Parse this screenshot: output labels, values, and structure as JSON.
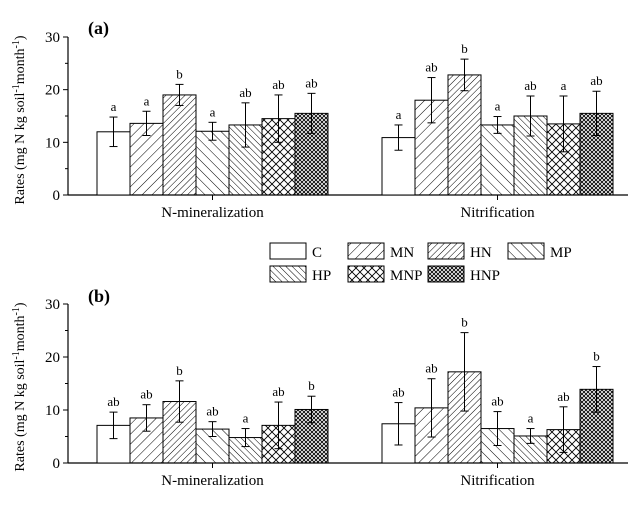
{
  "chart_data": [
    {
      "type": "bar",
      "panel_label": "(a)",
      "ylabel": "Rates (mg N kg soil",
      "ylabel_sup1": "-1",
      "ylabel_mid": "month",
      "ylabel_sup2": "-1",
      "ylabel_end": ")",
      "ylim": [
        0,
        30
      ],
      "yticks": [
        "0",
        "10",
        "20",
        "30"
      ],
      "categories": [
        "N-mineralization",
        "Nitrification"
      ],
      "series": [
        {
          "name": "C",
          "pattern": "none",
          "values": [
            12.0,
            10.9
          ],
          "errors": [
            2.8,
            2.4
          ],
          "letters": [
            "a",
            "a"
          ]
        },
        {
          "name": "MN",
          "pattern": "fwd",
          "values": [
            13.6,
            18.0
          ],
          "errors": [
            2.3,
            4.3
          ],
          "letters": [
            "a",
            "ab"
          ]
        },
        {
          "name": "HN",
          "pattern": "fwdDense",
          "values": [
            19.0,
            22.8
          ],
          "errors": [
            2.0,
            3.0
          ],
          "letters": [
            "b",
            "b"
          ]
        },
        {
          "name": "MP",
          "pattern": "back",
          "values": [
            12.1,
            13.3
          ],
          "errors": [
            1.7,
            1.6
          ],
          "letters": [
            "a",
            "a"
          ]
        },
        {
          "name": "HP",
          "pattern": "backDense",
          "values": [
            13.3,
            15.0
          ],
          "errors": [
            4.2,
            3.8
          ],
          "letters": [
            "ab",
            "ab"
          ]
        },
        {
          "name": "MNP",
          "pattern": "cross",
          "values": [
            14.5,
            13.5
          ],
          "errors": [
            4.5,
            5.3
          ],
          "letters": [
            "ab",
            "a"
          ]
        },
        {
          "name": "HNP",
          "pattern": "crossDense",
          "values": [
            15.5,
            15.5
          ],
          "errors": [
            3.8,
            4.2
          ],
          "letters": [
            "ab",
            "ab"
          ]
        }
      ]
    },
    {
      "type": "bar",
      "panel_label": "(b)",
      "ylabel": "Rates (mg N kg soil",
      "ylabel_sup1": "-1",
      "ylabel_mid": "month",
      "ylabel_sup2": "-1",
      "ylabel_end": ")",
      "ylim": [
        0,
        30
      ],
      "yticks": [
        "0",
        "10",
        "20",
        "30"
      ],
      "categories": [
        "N-mineralization",
        "Nitrification"
      ],
      "series": [
        {
          "name": "C",
          "pattern": "none",
          "values": [
            7.1,
            7.4
          ],
          "errors": [
            2.5,
            4.0
          ],
          "letters": [
            "ab",
            "ab"
          ]
        },
        {
          "name": "MN",
          "pattern": "fwd",
          "values": [
            8.5,
            10.4
          ],
          "errors": [
            2.5,
            5.5
          ],
          "letters": [
            "ab",
            "ab"
          ]
        },
        {
          "name": "HN",
          "pattern": "fwdDense",
          "values": [
            11.6,
            17.2
          ],
          "errors": [
            3.9,
            7.4
          ],
          "letters": [
            "b",
            "b"
          ]
        },
        {
          "name": "MP",
          "pattern": "back",
          "values": [
            6.4,
            6.5
          ],
          "errors": [
            1.4,
            3.2
          ],
          "letters": [
            "ab",
            "ab"
          ]
        },
        {
          "name": "HP",
          "pattern": "backDense",
          "values": [
            4.8,
            5.1
          ],
          "errors": [
            1.7,
            1.4
          ],
          "letters": [
            "a",
            "a"
          ]
        },
        {
          "name": "MNP",
          "pattern": "cross",
          "values": [
            7.1,
            6.3
          ],
          "errors": [
            4.4,
            4.3
          ],
          "letters": [
            "ab",
            "ab"
          ]
        },
        {
          "name": "HNP",
          "pattern": "crossDense",
          "values": [
            10.1,
            13.9
          ],
          "errors": [
            2.5,
            4.3
          ],
          "letters": [
            "b",
            "b"
          ]
        }
      ]
    }
  ],
  "legend": [
    "C",
    "MN",
    "HN",
    "MP",
    "HP",
    "MNP",
    "HNP"
  ]
}
